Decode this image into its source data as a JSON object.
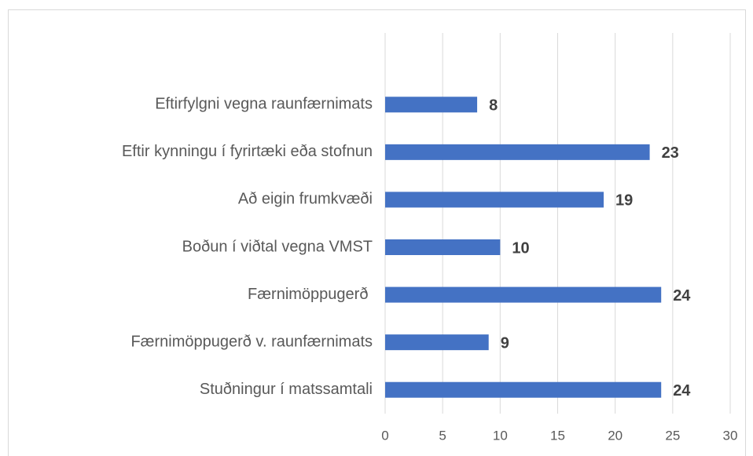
{
  "chart_data": {
    "type": "bar",
    "orientation": "horizontal",
    "categories": [
      "Eftirfylgni vegna raunfærnimats",
      "Eftir kynningu í fyrirtæki eða stofnun",
      "Að eigin frumkvæði",
      "Boðun í viðtal vegna VMST",
      "Færnimöppugerð ",
      "Færnimöppugerð v. raunfærnimats",
      "Stuðningur í matssamtali"
    ],
    "values": [
      8,
      23,
      19,
      10,
      24,
      9,
      24
    ],
    "color": "#4472c4",
    "xlim": [
      0,
      30
    ],
    "xticks": [
      0,
      5,
      10,
      15,
      20,
      25,
      30
    ],
    "grid": true
  }
}
